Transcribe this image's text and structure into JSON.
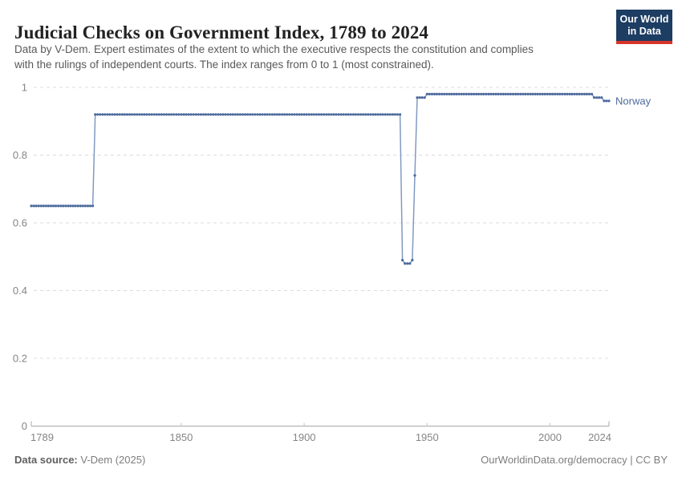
{
  "header": {
    "title": "Judicial Checks on Government Index, 1789 to 2024",
    "subtitle_line1": "Data by V-Dem. Expert estimates of the extent to which the executive respects the constitution and complies",
    "subtitle_line2": "with the rulings of independent courts. The index ranges from 0 to 1 (most constrained).",
    "logo": {
      "line1": "Our World",
      "line2": "in Data",
      "bg_color": "#1d3d63",
      "accent_color": "#d8352a"
    }
  },
  "chart_data": {
    "type": "line",
    "title": "Judicial Checks on Government Index, 1789 to 2024",
    "xlabel": "",
    "ylabel": "",
    "xlim": [
      1789,
      2024
    ],
    "ylim": [
      0,
      1
    ],
    "x_ticks": [
      1789,
      1850,
      1900,
      1950,
      2000,
      2024
    ],
    "y_ticks": [
      0,
      0.2,
      0.4,
      0.6,
      0.8,
      1
    ],
    "grid": "horizontal-dashed",
    "legend_position": "end-of-line",
    "colors": {
      "gridline": "#dcdcdc",
      "axis": "#a8a8a8",
      "tick_label": "#858585"
    },
    "series": [
      {
        "name": "Norway",
        "color": "#4C6A9C",
        "line_color": "#8299c2",
        "segments": [
          {
            "from": 1789,
            "to": 1814,
            "value": 0.65
          },
          {
            "from": 1815,
            "to": 1939,
            "value": 0.92
          },
          {
            "from": 1940,
            "to": 1940,
            "value": 0.49
          },
          {
            "from": 1941,
            "to": 1943,
            "value": 0.48
          },
          {
            "from": 1944,
            "to": 1944,
            "value": 0.49
          },
          {
            "from": 1945,
            "to": 1945,
            "value": 0.74
          },
          {
            "from": 1946,
            "to": 1949,
            "value": 0.97
          },
          {
            "from": 1950,
            "to": 2017,
            "value": 0.98
          },
          {
            "from": 2018,
            "to": 2021,
            "value": 0.97
          },
          {
            "from": 2022,
            "to": 2024,
            "value": 0.96
          }
        ]
      }
    ]
  },
  "footer": {
    "data_source_label": "Data source:",
    "data_source_value": " V-Dem (2025)",
    "credit": "OurWorldinData.org/democracy | CC BY"
  }
}
